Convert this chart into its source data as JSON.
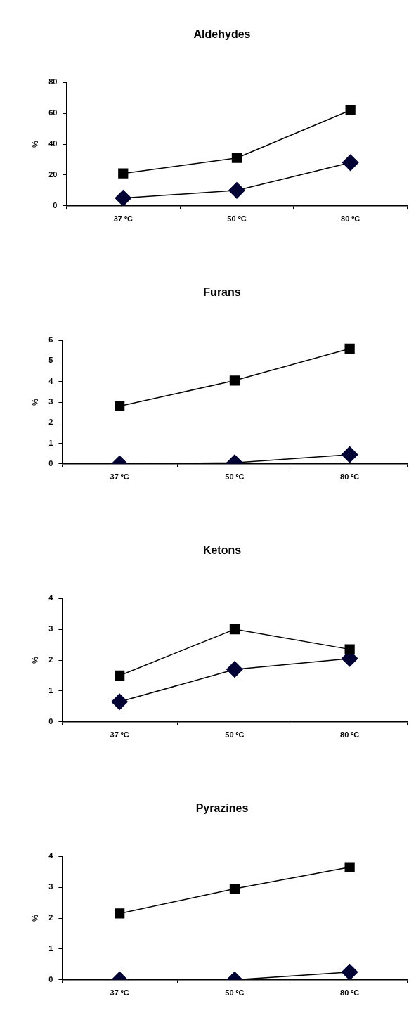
{
  "chart_data": [
    {
      "type": "line",
      "title": "Aldehydes",
      "ylabel": "%",
      "categories": [
        "37 ºC",
        "50 ºC",
        "80 ºC"
      ],
      "ylim": [
        0,
        80
      ],
      "yticks": [
        0,
        20,
        40,
        60,
        80
      ],
      "grid": false,
      "legend": false,
      "line_style": "solid",
      "series": [
        {
          "color": "#000000",
          "marker": "square",
          "values": [
            21,
            31,
            62
          ]
        },
        {
          "color": "#000033",
          "marker": "diamond",
          "values": [
            5,
            10,
            28
          ]
        }
      ]
    },
    {
      "type": "line",
      "title": "Furans",
      "ylabel": "%",
      "categories": [
        "37 ºC",
        "50 ºC",
        "80 ºC"
      ],
      "ylim": [
        0,
        6
      ],
      "yticks": [
        0,
        1,
        2,
        3,
        4,
        5,
        6
      ],
      "grid": false,
      "legend": false,
      "line_style": "solid",
      "series": [
        {
          "color": "#000000",
          "marker": "square",
          "values": [
            2.8,
            4.05,
            5.6
          ]
        },
        {
          "color": "#000033",
          "marker": "diamond",
          "values": [
            0,
            0.05,
            0.45
          ]
        }
      ]
    },
    {
      "type": "line",
      "title": "Ketons",
      "ylabel": "%",
      "categories": [
        "37 ºC",
        "50 ºC",
        "80 ºC"
      ],
      "ylim": [
        0,
        4
      ],
      "yticks": [
        0,
        1,
        2,
        3,
        4
      ],
      "grid": false,
      "legend": false,
      "line_style": "solid",
      "series": [
        {
          "color": "#000000",
          "marker": "square",
          "values": [
            1.5,
            3.0,
            2.35
          ]
        },
        {
          "color": "#000033",
          "marker": "diamond",
          "values": [
            0.65,
            1.7,
            2.05
          ]
        }
      ]
    },
    {
      "type": "line",
      "title": "Pyrazines",
      "ylabel": "%",
      "categories": [
        "37 ºC",
        "50 ºC",
        "80 ºC"
      ],
      "ylim": [
        0,
        4
      ],
      "yticks": [
        0,
        1,
        2,
        3,
        4
      ],
      "grid": false,
      "legend": false,
      "line_style": "solid",
      "series": [
        {
          "color": "#000000",
          "marker": "square",
          "values": [
            2.15,
            2.95,
            3.65
          ]
        },
        {
          "color": "#000033",
          "marker": "diamond",
          "values": [
            0,
            0,
            0.25
          ]
        }
      ]
    }
  ]
}
